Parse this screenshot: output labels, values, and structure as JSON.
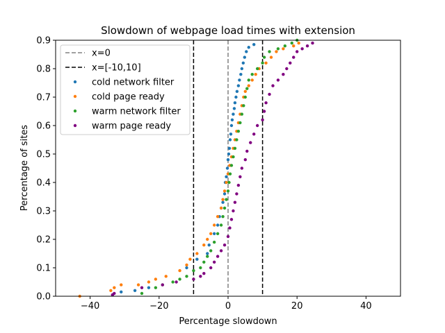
{
  "chart_data": {
    "type": "scatter",
    "title": "Slowdown of webpage load times with extension",
    "xlabel": "Percentage slowdown",
    "ylabel": "Percentage of sites",
    "xlim": [
      -50,
      50
    ],
    "ylim": [
      0,
      0.9
    ],
    "xticks": [
      -40,
      -20,
      0,
      20,
      40
    ],
    "xtick_labels": [
      "−40",
      "−20",
      "0",
      "20",
      "40"
    ],
    "yticks": [
      0,
      0.1,
      0.2,
      0.3,
      0.4,
      0.5,
      0.6,
      0.7,
      0.8,
      0.9
    ],
    "ytick_labels": [
      "0.0",
      "0.1",
      "0.2",
      "0.3",
      "0.4",
      "0.5",
      "0.6",
      "0.7",
      "0.8",
      "0.9"
    ],
    "grid": false,
    "legend_placement": "upper-left",
    "vlines": [
      {
        "name": "x=0",
        "x": [
          0
        ],
        "color": "#808080",
        "style": "dashed"
      },
      {
        "name": "x=[-10,10]",
        "x": [
          -10,
          10
        ],
        "color": "#000000",
        "style": "dashed"
      }
    ],
    "series": [
      {
        "name": "cold network filter",
        "color": "#1f77b4",
        "points": [
          [
            -33.5,
            0.005
          ],
          [
            -31,
            0.015
          ],
          [
            -27,
            0.02
          ],
          [
            -23,
            0.03
          ],
          [
            -12,
            0.1
          ],
          [
            -9,
            0.13
          ],
          [
            -6,
            0.15
          ],
          [
            -5.5,
            0.18
          ],
          [
            -4,
            0.22
          ],
          [
            -3,
            0.25
          ],
          [
            -2.5,
            0.28
          ],
          [
            -2,
            0.31
          ],
          [
            -1.5,
            0.33
          ],
          [
            -1,
            0.36
          ],
          [
            -0.8,
            0.4
          ],
          [
            -0.5,
            0.42
          ],
          [
            -0.2,
            0.45
          ],
          [
            0,
            0.48
          ],
          [
            0.2,
            0.5
          ],
          [
            0.4,
            0.52
          ],
          [
            0.6,
            0.55
          ],
          [
            0.8,
            0.57
          ],
          [
            1,
            0.6
          ],
          [
            1.2,
            0.62
          ],
          [
            1.5,
            0.64
          ],
          [
            1.8,
            0.66
          ],
          [
            2,
            0.68
          ],
          [
            2.3,
            0.7
          ],
          [
            2.6,
            0.72
          ],
          [
            3,
            0.74
          ],
          [
            3.3,
            0.76
          ],
          [
            3.7,
            0.78
          ],
          [
            4,
            0.8
          ],
          [
            4.4,
            0.82
          ],
          [
            4.8,
            0.84
          ],
          [
            5.3,
            0.86
          ],
          [
            6,
            0.875
          ],
          [
            7.5,
            0.885
          ]
        ]
      },
      {
        "name": "cold page ready",
        "color": "#ff7f0e",
        "points": [
          [
            -43,
            0.0
          ],
          [
            -34,
            0.02
          ],
          [
            -33,
            0.03
          ],
          [
            -31,
            0.04
          ],
          [
            -26,
            0.04
          ],
          [
            -23,
            0.05
          ],
          [
            -21,
            0.06
          ],
          [
            -18,
            0.07
          ],
          [
            -14,
            0.09
          ],
          [
            -12,
            0.11
          ],
          [
            -11,
            0.13
          ],
          [
            -9,
            0.15
          ],
          [
            -7,
            0.18
          ],
          [
            -6,
            0.2
          ],
          [
            -5,
            0.22
          ],
          [
            -4,
            0.25
          ],
          [
            -3,
            0.28
          ],
          [
            -2,
            0.31
          ],
          [
            -1.5,
            0.34
          ],
          [
            -1,
            0.37
          ],
          [
            -0.5,
            0.4
          ],
          [
            0,
            0.43
          ],
          [
            0.5,
            0.46
          ],
          [
            1,
            0.49
          ],
          [
            1.5,
            0.52
          ],
          [
            2,
            0.55
          ],
          [
            2.5,
            0.58
          ],
          [
            3,
            0.61
          ],
          [
            3.5,
            0.64
          ],
          [
            4,
            0.67
          ],
          [
            4.5,
            0.7
          ],
          [
            5,
            0.72
          ],
          [
            6,
            0.74
          ],
          [
            7,
            0.76
          ],
          [
            8,
            0.78
          ],
          [
            9,
            0.8
          ],
          [
            11,
            0.82
          ],
          [
            12.5,
            0.84
          ],
          [
            14,
            0.86
          ],
          [
            16,
            0.87
          ],
          [
            19,
            0.88
          ],
          [
            20.5,
            0.89
          ]
        ]
      },
      {
        "name": "warm network filter",
        "color": "#2ca02c",
        "points": [
          [
            -25,
            0.01
          ],
          [
            -21,
            0.03
          ],
          [
            -19,
            0.04
          ],
          [
            -16,
            0.05
          ],
          [
            -14,
            0.06
          ],
          [
            -12,
            0.07
          ],
          [
            -10,
            0.09
          ],
          [
            -8,
            0.1
          ],
          [
            -7,
            0.12
          ],
          [
            -6,
            0.14
          ],
          [
            -5,
            0.16
          ],
          [
            -4,
            0.19
          ],
          [
            -3,
            0.22
          ],
          [
            -2,
            0.25
          ],
          [
            -1.5,
            0.28
          ],
          [
            -1,
            0.31
          ],
          [
            -0.5,
            0.34
          ],
          [
            0,
            0.37
          ],
          [
            0.3,
            0.4
          ],
          [
            0.6,
            0.43
          ],
          [
            1,
            0.46
          ],
          [
            1.5,
            0.49
          ],
          [
            2,
            0.52
          ],
          [
            2.5,
            0.55
          ],
          [
            3,
            0.58
          ],
          [
            3.5,
            0.61
          ],
          [
            4,
            0.64
          ],
          [
            4.5,
            0.67
          ],
          [
            5,
            0.7
          ],
          [
            5.5,
            0.73
          ],
          [
            6,
            0.76
          ],
          [
            7,
            0.78
          ],
          [
            8.5,
            0.8
          ],
          [
            10,
            0.82
          ],
          [
            10.5,
            0.84
          ],
          [
            12,
            0.86
          ],
          [
            14.5,
            0.87
          ],
          [
            16.5,
            0.88
          ],
          [
            18.5,
            0.89
          ],
          [
            20,
            0.9
          ]
        ]
      },
      {
        "name": "warm page ready",
        "color": "#800080",
        "points": [
          [
            -33.5,
            0.005
          ],
          [
            -33,
            0.01
          ],
          [
            -25,
            0.03
          ],
          [
            -19,
            0.04
          ],
          [
            -15,
            0.05
          ],
          [
            -10,
            0.06
          ],
          [
            -8,
            0.07
          ],
          [
            -7,
            0.08
          ],
          [
            -5,
            0.1
          ],
          [
            -4,
            0.12
          ],
          [
            -3,
            0.14
          ],
          [
            -2,
            0.16
          ],
          [
            -1,
            0.18
          ],
          [
            0,
            0.21
          ],
          [
            0.5,
            0.24
          ],
          [
            1,
            0.27
          ],
          [
            1.5,
            0.3
          ],
          [
            2,
            0.33
          ],
          [
            2.5,
            0.36
          ],
          [
            3,
            0.39
          ],
          [
            3.5,
            0.42
          ],
          [
            4,
            0.45
          ],
          [
            5,
            0.48
          ],
          [
            5.5,
            0.51
          ],
          [
            6.5,
            0.54
          ],
          [
            7.5,
            0.57
          ],
          [
            8.5,
            0.6
          ],
          [
            10,
            0.62
          ],
          [
            10.5,
            0.65
          ],
          [
            11,
            0.68
          ],
          [
            12,
            0.71
          ],
          [
            13,
            0.74
          ],
          [
            14.5,
            0.76
          ],
          [
            16,
            0.78
          ],
          [
            17,
            0.8
          ],
          [
            18,
            0.82
          ],
          [
            19,
            0.84
          ],
          [
            20,
            0.86
          ],
          [
            21.5,
            0.87
          ],
          [
            23,
            0.88
          ],
          [
            24.5,
            0.89
          ]
        ]
      }
    ]
  }
}
